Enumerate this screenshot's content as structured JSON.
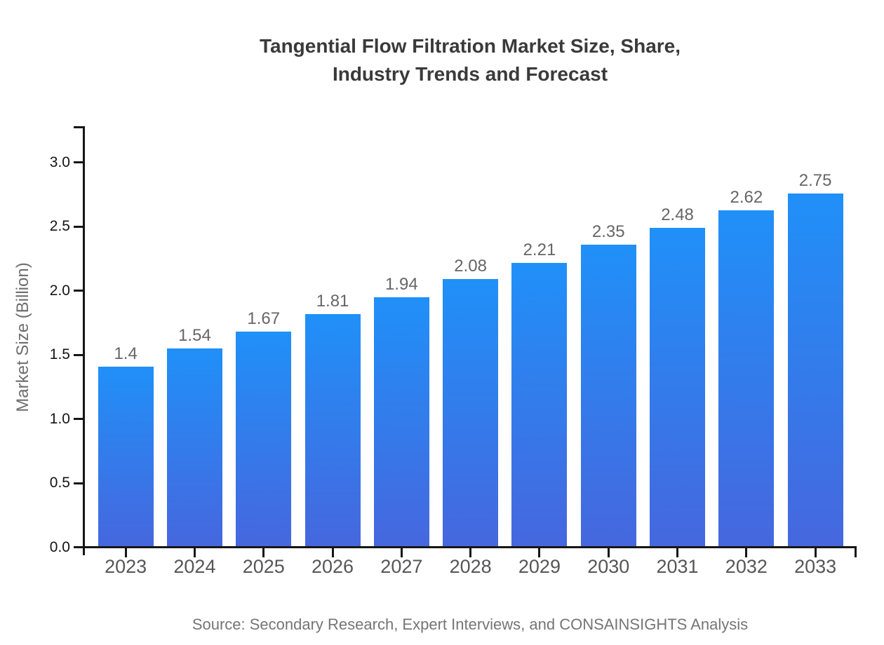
{
  "title": {
    "line1": "Tangential Flow Filtration Market Size, Share,",
    "line2": "Industry Trends and Forecast"
  },
  "source_note": "Source: Secondary Research, Expert Interviews, and CONSAINSIGHTS Analysis",
  "chart_data": {
    "type": "bar",
    "title": "Tangential Flow Filtration Market Size, Share, Industry Trends and Forecast",
    "categories": [
      "2023",
      "2024",
      "2025",
      "2026",
      "2027",
      "2028",
      "2029",
      "2030",
      "2031",
      "2032",
      "2033"
    ],
    "values": [
      1.4,
      1.54,
      1.67,
      1.81,
      1.94,
      2.08,
      2.21,
      2.35,
      2.48,
      2.62,
      2.75
    ],
    "value_labels": [
      "1.4",
      "1.54",
      "1.67",
      "1.81",
      "1.94",
      "2.08",
      "2.21",
      "2.35",
      "2.48",
      "2.62",
      "2.75"
    ],
    "xlabel": "",
    "ylabel": "Market Size (Billion)",
    "ylim": [
      0,
      3.3
    ],
    "ytick_labels": [
      "0.0",
      "0.5",
      "1.0",
      "1.5",
      "2.0",
      "2.5",
      "3.0"
    ],
    "grid": false,
    "legend": false,
    "colors": {
      "bar_gradient_top": "#2090f8",
      "bar_gradient_bottom": "#4667de",
      "axis": "#161616",
      "title_text": "#3a3a3a",
      "tick_label_text": "#141414",
      "category_label_text": "#565656",
      "value_label_text": "#666666",
      "muted_text": "#6e6e6e"
    }
  }
}
